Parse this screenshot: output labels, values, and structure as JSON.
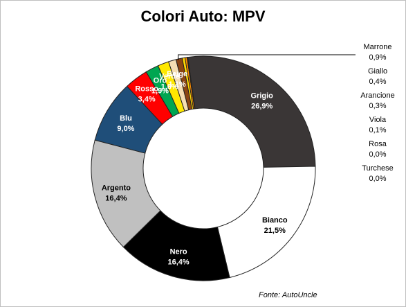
{
  "title": "Colori Auto: MPV",
  "source": "Fonte: AutoUncle",
  "chart_data": {
    "type": "pie",
    "variant": "donut",
    "title": "Colori Auto: MPV",
    "source": "Fonte: AutoUncle",
    "slices": [
      {
        "name": "Grigio",
        "value": 26.9,
        "label": "26,9%",
        "color": "#3a3636",
        "text_color": "#ffffff",
        "inside": true
      },
      {
        "name": "Bianco",
        "value": 21.5,
        "label": "21,5%",
        "color": "#ffffff",
        "text_color": "#000000",
        "inside": true
      },
      {
        "name": "Nero",
        "value": 16.4,
        "label": "16,4%",
        "color": "#000000",
        "text_color": "#ffffff",
        "inside": true
      },
      {
        "name": "Argento",
        "value": 16.4,
        "label": "16,4%",
        "color": "#c0c0c0",
        "text_color": "#000000",
        "inside": true
      },
      {
        "name": "Blu",
        "value": 9.0,
        "label": "9,0%",
        "color": "#1f4e79",
        "text_color": "#ffffff",
        "inside": true
      },
      {
        "name": "Rosso",
        "value": 3.4,
        "label": "3,4%",
        "color": "#ff0000",
        "text_color": "#ffffff",
        "inside": true
      },
      {
        "name": "Oro",
        "value": 1.9,
        "label": "1,9%",
        "color": "#00a651",
        "text_color": "#ffffff",
        "inside": true
      },
      {
        "name": "Verde",
        "value": 1.6,
        "label": "1,6%",
        "color": "#ffe800",
        "text_color": "#ffffff",
        "inside": true
      },
      {
        "name": "Beige",
        "value": 1.1,
        "label": "1,1%",
        "color": "#f5deb3",
        "text_color": "#ffffff",
        "inside": true
      },
      {
        "name": "Marrone",
        "value": 0.9,
        "label": "0,9%",
        "color": "#8b4513",
        "text_color": "#000000",
        "inside": false
      },
      {
        "name": "Giallo",
        "value": 0.4,
        "label": "0,4%",
        "color": "#ffd700",
        "text_color": "#000000",
        "inside": false
      },
      {
        "name": "Arancione",
        "value": 0.3,
        "label": "0,3%",
        "color": "#ff8c00",
        "text_color": "#000000",
        "inside": false
      },
      {
        "name": "Viola",
        "value": 0.1,
        "label": "0,1%",
        "color": "#7030a0",
        "text_color": "#000000",
        "inside": false
      },
      {
        "name": "Rosa",
        "value": 0.0,
        "label": "0,0%",
        "color": "#ff99cc",
        "text_color": "#000000",
        "inside": false
      },
      {
        "name": "Turchese",
        "value": 0.0,
        "label": "0,0%",
        "color": "#40e0d0",
        "text_color": "#000000",
        "inside": false
      }
    ]
  }
}
